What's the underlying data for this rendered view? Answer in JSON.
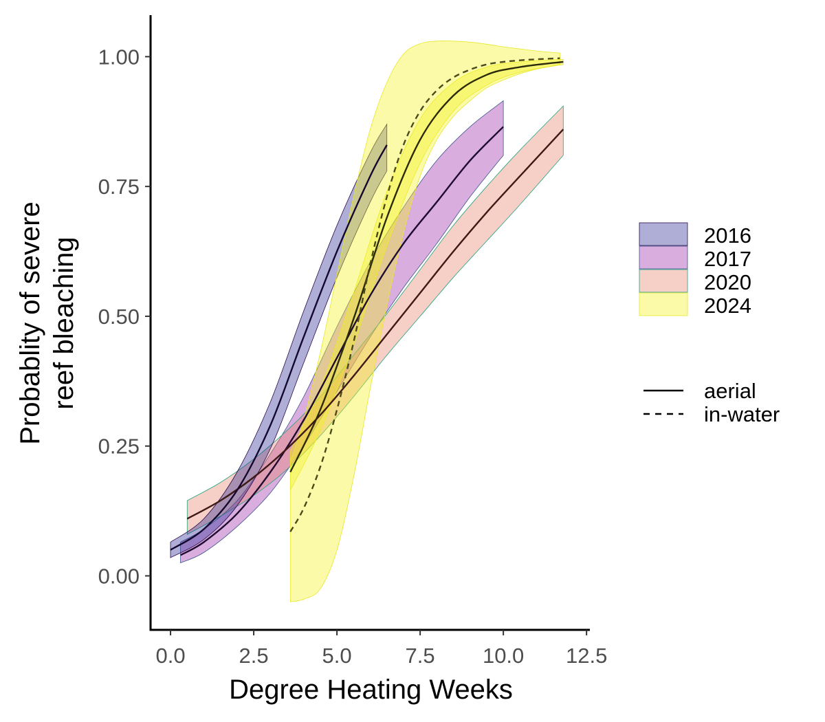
{
  "chart_data": {
    "type": "line",
    "title": "",
    "xlabel": "Degree Heating Weeks",
    "ylabel_lines": [
      "Probablity of severe",
      "reef bleaching"
    ],
    "xlim": [
      -0.6,
      12.6
    ],
    "ylim": [
      -0.104,
      1.08
    ],
    "x_ticks": [
      0,
      2.5,
      5,
      7.5,
      10,
      12.5
    ],
    "x_tick_labels": [
      "0.0",
      "2.5",
      "5.0",
      "7.5",
      "10.0",
      "12.5"
    ],
    "y_ticks": [
      0,
      0.25,
      0.5,
      0.75,
      1
    ],
    "y_tick_labels": [
      "0.00",
      "0.25",
      "0.50",
      "0.75",
      "1.00"
    ],
    "grid": false,
    "legend_position": "right",
    "legend_fill": [
      {
        "label": "2016",
        "color": "#2a2a94"
      },
      {
        "label": "2017",
        "color": "#9c2aab"
      },
      {
        "label": "2020",
        "color": "#e8826a"
      },
      {
        "label": "2024",
        "color": "#f2f21e"
      }
    ],
    "legend_linetype": [
      {
        "label": "aerial",
        "dash": "solid"
      },
      {
        "label": "in-water",
        "dash": "dashed"
      }
    ],
    "series": [
      {
        "name": "2017",
        "method": "aerial",
        "fill": "#9c2aab",
        "band_stroke": "#3b528b",
        "line_color": "#1e0b30",
        "dash": "solid",
        "x": [
          0.3,
          1,
          2,
          3,
          4,
          5,
          6,
          7,
          8,
          9,
          10
        ],
        "y": [
          0.04,
          0.065,
          0.12,
          0.2,
          0.3,
          0.42,
          0.54,
          0.64,
          0.72,
          0.8,
          0.865
        ],
        "lower": [
          0.025,
          0.045,
          0.095,
          0.16,
          0.25,
          0.355,
          0.46,
          0.555,
          0.64,
          0.73,
          0.81
        ],
        "upper": [
          0.065,
          0.09,
          0.145,
          0.235,
          0.345,
          0.48,
          0.605,
          0.71,
          0.8,
          0.865,
          0.915
        ]
      },
      {
        "name": "2020",
        "method": "aerial",
        "fill": "#e8826a",
        "band_stroke": "#21a37c",
        "line_color": "#3d1a15",
        "dash": "solid",
        "x": [
          0.5,
          1.5,
          2.5,
          3.5,
          4.5,
          5.5,
          6.5,
          7.5,
          8.5,
          9.5,
          10.5,
          11.8
        ],
        "y": [
          0.11,
          0.145,
          0.19,
          0.245,
          0.31,
          0.385,
          0.465,
          0.545,
          0.625,
          0.7,
          0.77,
          0.86
        ],
        "lower": [
          0.08,
          0.115,
          0.155,
          0.205,
          0.27,
          0.345,
          0.425,
          0.5,
          0.575,
          0.645,
          0.715,
          0.81
        ],
        "upper": [
          0.145,
          0.18,
          0.225,
          0.28,
          0.345,
          0.425,
          0.505,
          0.59,
          0.675,
          0.75,
          0.82,
          0.905
        ]
      },
      {
        "name": "2016",
        "method": "aerial",
        "fill": "#2a2a94",
        "band_stroke": "#2a0a4a",
        "line_color": "#14082e",
        "dash": "solid",
        "x": [
          0,
          1,
          2,
          3,
          4,
          5,
          6,
          6.5
        ],
        "y": [
          0.05,
          0.09,
          0.165,
          0.29,
          0.46,
          0.625,
          0.77,
          0.83
        ],
        "lower": [
          0.035,
          0.07,
          0.135,
          0.245,
          0.41,
          0.575,
          0.72,
          0.78
        ],
        "upper": [
          0.065,
          0.11,
          0.2,
          0.335,
          0.51,
          0.675,
          0.815,
          0.87
        ]
      },
      {
        "name": "2024",
        "method": "aerial",
        "fill": "#f2f21e",
        "band_stroke": "#e8e829",
        "line_color": "#2b2a0a",
        "dash": "solid",
        "x": [
          3.6,
          4.5,
          5.5,
          6.5,
          7.5,
          8.5,
          9.5,
          10.5,
          11.8
        ],
        "y": [
          0.2,
          0.32,
          0.495,
          0.69,
          0.84,
          0.925,
          0.965,
          0.98,
          0.99
        ],
        "lower": [
          0.165,
          0.28,
          0.445,
          0.635,
          0.795,
          0.895,
          0.945,
          0.97,
          0.985
        ],
        "upper": [
          0.24,
          0.36,
          0.545,
          0.74,
          0.88,
          0.95,
          0.98,
          0.99,
          0.995
        ]
      },
      {
        "name": "2024",
        "method": "in-water",
        "fill": "#f2f21e",
        "band_stroke": "#e8e829",
        "line_color": "#4a4a1a",
        "dash": "dashed",
        "x": [
          3.6,
          4,
          4.5,
          5,
          5.5,
          6,
          6.5,
          7,
          7.5,
          8,
          8.5,
          9,
          9.5,
          10,
          10.5,
          11,
          11.7
        ],
        "y": [
          0.085,
          0.13,
          0.21,
          0.32,
          0.45,
          0.6,
          0.73,
          0.83,
          0.895,
          0.935,
          0.96,
          0.975,
          0.985,
          0.99,
          0.993,
          0.995,
          0.997
        ],
        "lower": [
          -0.05,
          -0.045,
          -0.025,
          0.05,
          0.19,
          0.36,
          0.52,
          0.66,
          0.77,
          0.84,
          0.885,
          0.915,
          0.94,
          0.955,
          0.967,
          0.976,
          0.985
        ],
        "upper": [
          0.22,
          0.3,
          0.43,
          0.58,
          0.73,
          0.86,
          0.95,
          1.005,
          1.025,
          1.03,
          1.03,
          1.028,
          1.024,
          1.019,
          1.015,
          1.011,
          1.007
        ]
      }
    ]
  }
}
